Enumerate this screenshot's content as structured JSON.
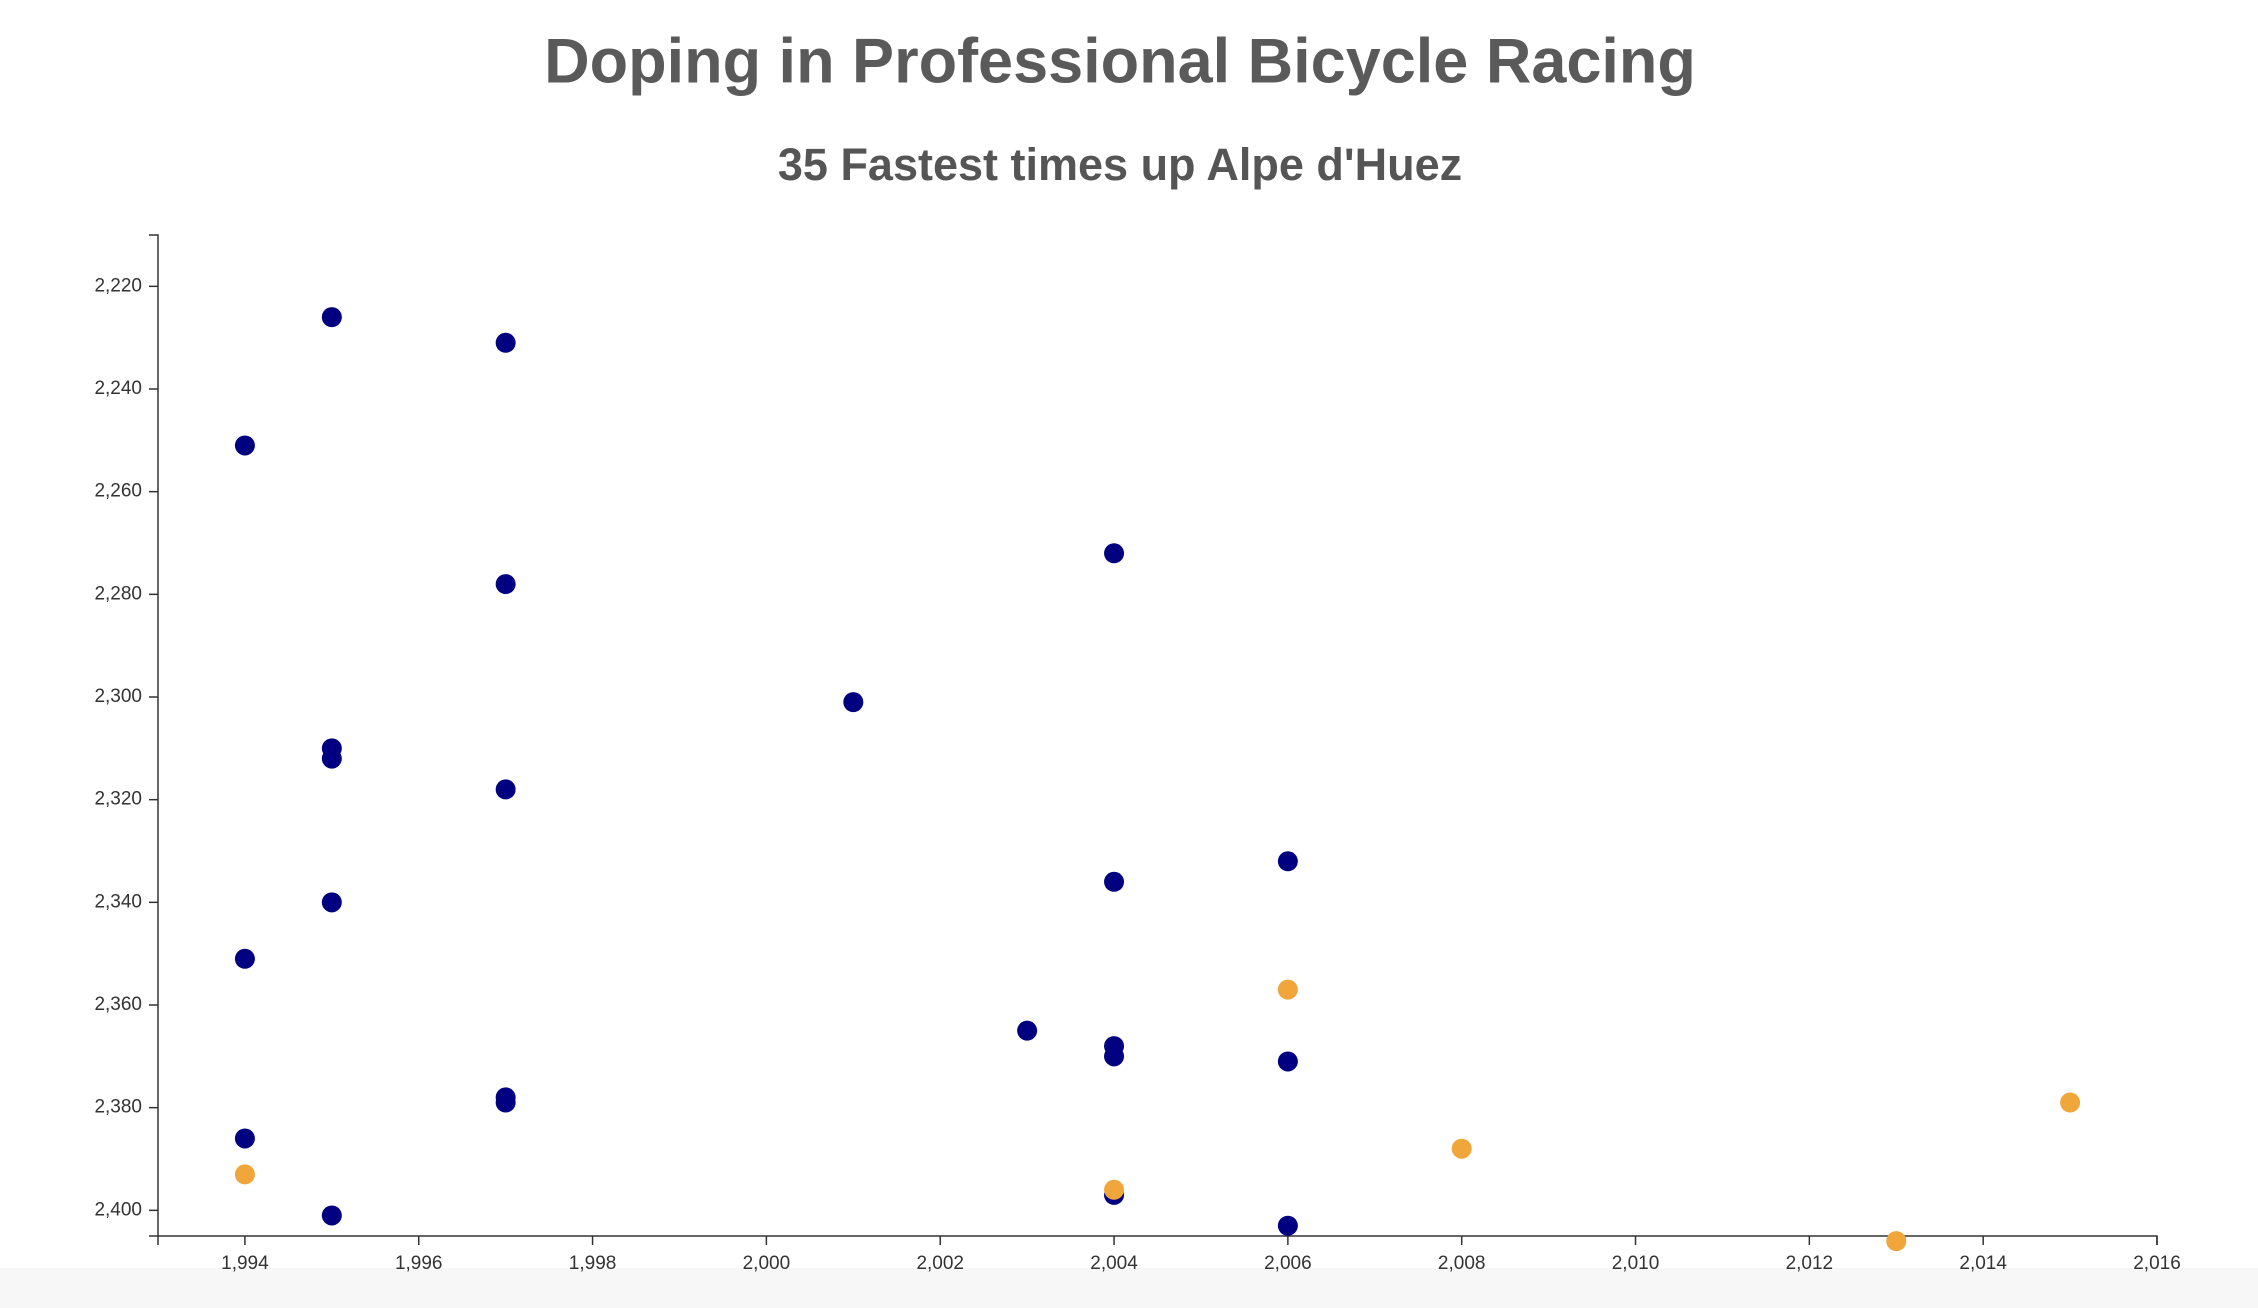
{
  "chart_data": {
    "type": "scatter",
    "title": "Doping in Professional Bicycle Racing",
    "subtitle": "35 Fastest times up Alpe d'Huez",
    "xlim": [
      1993,
      2016
    ],
    "ylim": [
      2210,
      2405
    ],
    "y_inverted": true,
    "xticks": [
      {
        "value": 1994,
        "label": "1,994"
      },
      {
        "value": 1996,
        "label": "1,996"
      },
      {
        "value": 1998,
        "label": "1,998"
      },
      {
        "value": 2000,
        "label": "2,000"
      },
      {
        "value": 2002,
        "label": "2,002"
      },
      {
        "value": 2004,
        "label": "2,004"
      },
      {
        "value": 2006,
        "label": "2,006"
      },
      {
        "value": 2008,
        "label": "2,008"
      },
      {
        "value": 2010,
        "label": "2,010"
      },
      {
        "value": 2012,
        "label": "2,012"
      },
      {
        "value": 2014,
        "label": "2,014"
      },
      {
        "value": 2016,
        "label": "2,016"
      }
    ],
    "yticks": [
      {
        "value": 2220,
        "label": "2,220"
      },
      {
        "value": 2240,
        "label": "2,240"
      },
      {
        "value": 2260,
        "label": "2,260"
      },
      {
        "value": 2280,
        "label": "2,280"
      },
      {
        "value": 2300,
        "label": "2,300"
      },
      {
        "value": 2320,
        "label": "2,320"
      },
      {
        "value": 2340,
        "label": "2,340"
      },
      {
        "value": 2360,
        "label": "2,360"
      },
      {
        "value": 2380,
        "label": "2,380"
      },
      {
        "value": 2400,
        "label": "2,400"
      }
    ],
    "series": [
      {
        "color": "#000080",
        "x": [
          1995,
          1997,
          1994,
          2004,
          1997,
          2001,
          1995,
          1995,
          1997,
          2006,
          2004,
          1995,
          1994,
          2003,
          2004,
          2004,
          2006,
          1997,
          1997,
          1994,
          2004,
          1995,
          2006
        ],
        "values": [
          2226,
          2231,
          2251,
          2272,
          2278,
          2301,
          2310,
          2312,
          2318,
          2332,
          2336,
          2340,
          2351,
          2365,
          2368,
          2370,
          2371,
          2378,
          2379,
          2386,
          2397,
          2401,
          2403
        ]
      },
      {
        "color": "#f0a63a",
        "x": [
          2006,
          2015,
          2008,
          1994,
          2004,
          2013
        ],
        "values": [
          2357,
          2379,
          2388,
          2393,
          2396,
          2406
        ]
      }
    ]
  }
}
